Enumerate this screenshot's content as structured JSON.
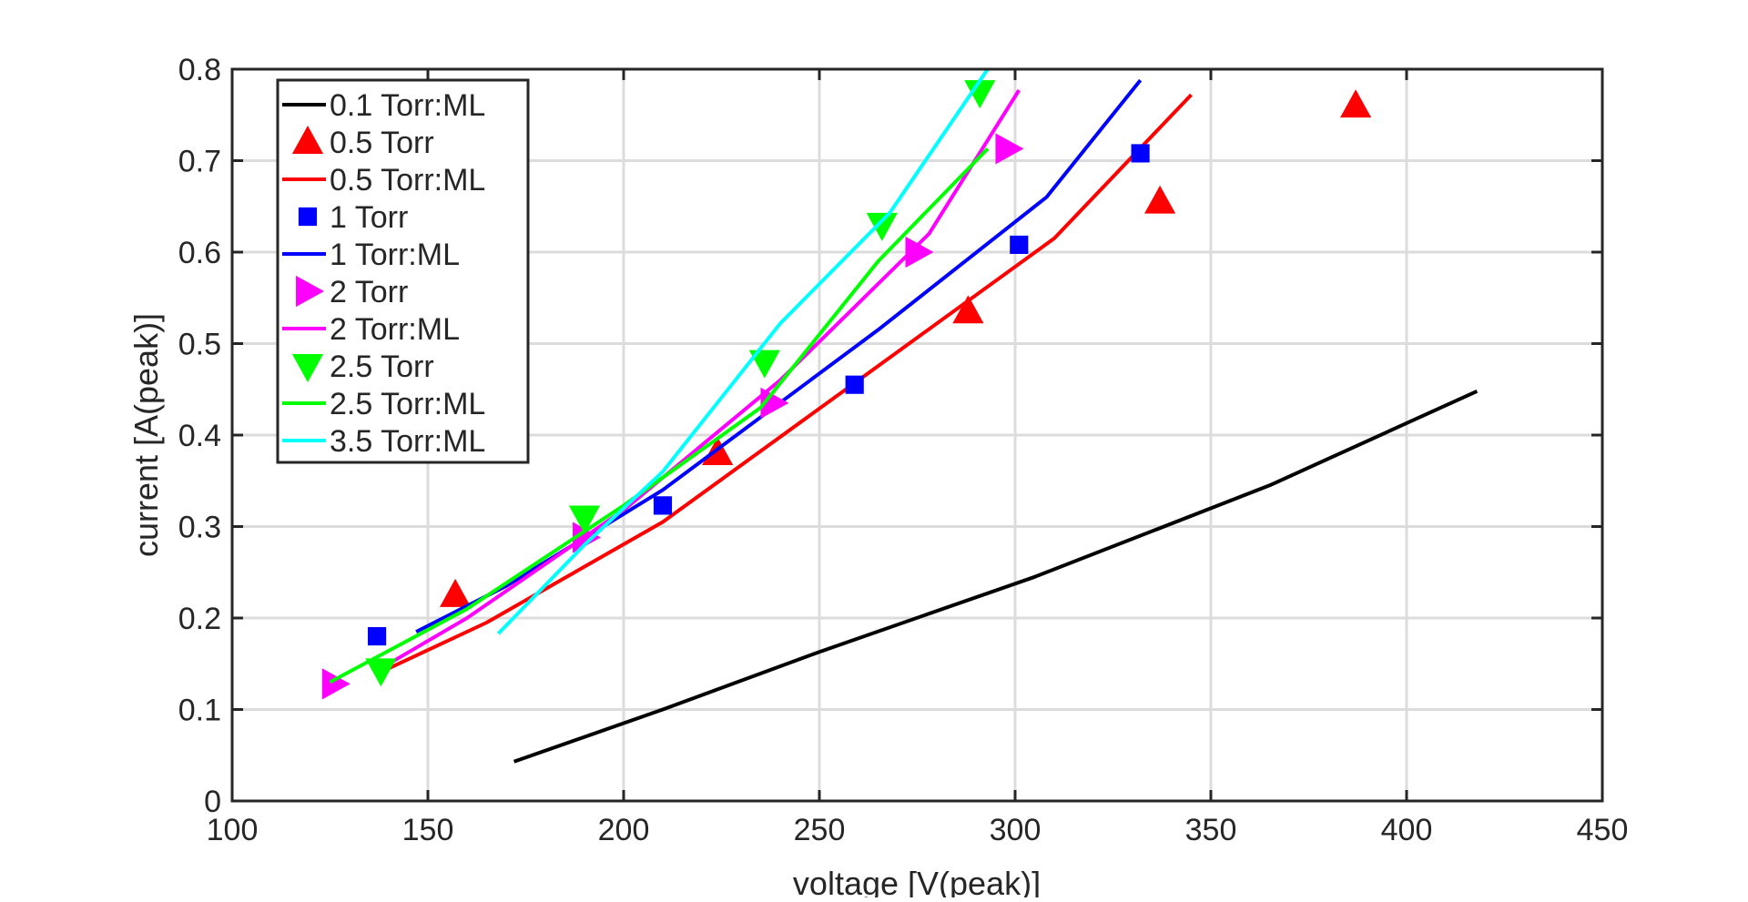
{
  "chart_data": {
    "type": "line",
    "title": "",
    "xlabel": "voltage [V(peak)]",
    "ylabel": "current [A(peak)]",
    "xlim": [
      100,
      450
    ],
    "ylim": [
      0,
      0.8
    ],
    "xticks": [
      100,
      150,
      200,
      250,
      300,
      350,
      400,
      450
    ],
    "xtick_labels": [
      "100",
      "150",
      "200",
      "250",
      "300",
      "350",
      "400",
      "450"
    ],
    "yticks": [
      0,
      0.1,
      0.2,
      0.3,
      0.4,
      0.5,
      0.6,
      0.7,
      0.8
    ],
    "ytick_labels": [
      "0",
      "0.1",
      "0.2",
      "0.3",
      "0.4",
      "0.5",
      "0.6",
      "0.7",
      "0.8"
    ],
    "grid": true,
    "legend_position": "top-left",
    "series": [
      {
        "name": "0.1 Torr:ML",
        "kind": "line",
        "color": "#000000",
        "x": [
          172,
          210,
          250,
          305,
          365,
          418
        ],
        "y": [
          0.043,
          0.1,
          0.163,
          0.245,
          0.345,
          0.448
        ]
      },
      {
        "name": "0.5 Torr",
        "kind": "marker",
        "marker": "triangle-up",
        "color": "#ff0000",
        "x": [
          157,
          224,
          288,
          337,
          387
        ],
        "y": [
          0.225,
          0.38,
          0.535,
          0.655,
          0.76
        ]
      },
      {
        "name": "0.5 Torr:ML",
        "kind": "line",
        "color": "#ff0000",
        "x": [
          140,
          165,
          210,
          260,
          310,
          345
        ],
        "y": [
          0.145,
          0.195,
          0.305,
          0.46,
          0.615,
          0.772
        ]
      },
      {
        "name": "1 Torr",
        "kind": "marker",
        "marker": "square",
        "color": "#0000ff",
        "x": [
          137,
          210,
          259,
          301,
          332
        ],
        "y": [
          0.18,
          0.323,
          0.455,
          0.608,
          0.708
        ]
      },
      {
        "name": "1 Torr:ML",
        "kind": "line",
        "color": "#0000ff",
        "x": [
          147,
          170,
          210,
          265,
          308,
          332
        ],
        "y": [
          0.185,
          0.235,
          0.34,
          0.515,
          0.66,
          0.788
        ]
      },
      {
        "name": "2 Torr",
        "kind": "marker",
        "marker": "triangle-right",
        "color": "#ff00ff",
        "x": [
          126,
          190,
          238,
          275,
          298
        ],
        "y": [
          0.128,
          0.288,
          0.435,
          0.6,
          0.713
        ]
      },
      {
        "name": "2 Torr:ML",
        "kind": "line",
        "color": "#ff00ff",
        "x": [
          138,
          160,
          200,
          240,
          278,
          301
        ],
        "y": [
          0.145,
          0.2,
          0.318,
          0.46,
          0.62,
          0.777
        ]
      },
      {
        "name": "2.5 Torr",
        "kind": "marker",
        "marker": "triangle-down",
        "color": "#00ff00",
        "x": [
          138,
          190,
          236,
          266,
          291
        ],
        "y": [
          0.143,
          0.31,
          0.48,
          0.63,
          0.775
        ]
      },
      {
        "name": "2.5 Torr:ML",
        "kind": "line",
        "color": "#00ff00",
        "x": [
          125,
          160,
          200,
          235,
          265,
          293
        ],
        "y": [
          0.13,
          0.21,
          0.323,
          0.43,
          0.59,
          0.713
        ]
      },
      {
        "name": "3.5 Torr:ML",
        "kind": "line",
        "color": "#00ffff",
        "x": [
          168,
          190,
          210,
          240,
          268,
          293
        ],
        "y": [
          0.183,
          0.28,
          0.36,
          0.522,
          0.643,
          0.8
        ]
      }
    ]
  }
}
